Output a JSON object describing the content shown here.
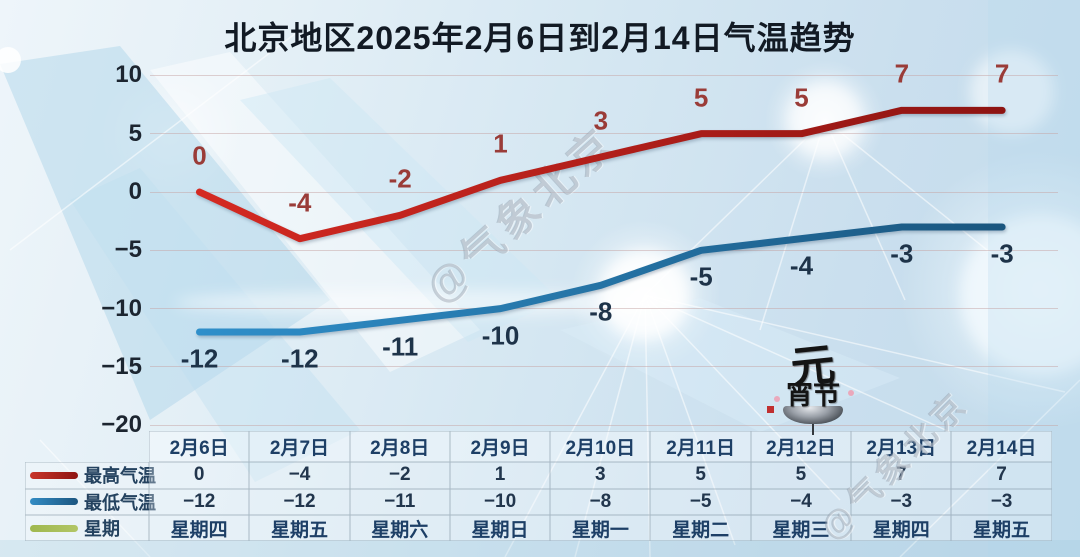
{
  "title": "北京地区2025年2月6日到2月14日气温趋势",
  "watermark": {
    "text": "@气象北京"
  },
  "festival_logo": {
    "top": "元",
    "bottom": "宵节"
  },
  "chart_data": {
    "type": "line",
    "title": "北京地区2025年2月6日到2月14日气温趋势",
    "categories": [
      "2月6日",
      "2月7日",
      "2月8日",
      "2月9日",
      "2月10日",
      "2月11日",
      "2月12日",
      "2月13日",
      "2月14日"
    ],
    "series": [
      {
        "name": "最高气温",
        "values": [
          0,
          -4,
          -2,
          1,
          3,
          5,
          5,
          7,
          7
        ],
        "color_start": "#d42a22",
        "color_end": "#8e1412",
        "label_color": "#9a3c38"
      },
      {
        "name": "最低气温",
        "values": [
          -12,
          -12,
          -11,
          -10,
          -8,
          -5,
          -4,
          -3,
          -3
        ],
        "color_start": "#2f8fca",
        "color_end": "#1a567f",
        "label_color": "#1e3349"
      },
      {
        "name": "星期",
        "values_text": [
          "星期四",
          "星期五",
          "星期六",
          "星期日",
          "星期一",
          "星期二",
          "星期三",
          "星期四",
          "星期五"
        ],
        "color_start": "#9fb84e",
        "color_end": "#b2c666"
      }
    ],
    "yticks": [
      10,
      5,
      0,
      -5,
      -10,
      -15,
      -20
    ],
    "ylim": [
      -20,
      10
    ],
    "grid": true,
    "legend_position": "table-left"
  },
  "table": {
    "columns": [
      "2月6日",
      "2月7日",
      "2月8日",
      "2月9日",
      "2月10日",
      "2月11日",
      "2月12日",
      "2月13日",
      "2月14日"
    ],
    "rows": [
      {
        "label": "最高气温",
        "kind": "val",
        "values": [
          "0",
          "−4",
          "−2",
          "1",
          "3",
          "5",
          "5",
          "7",
          "7"
        ],
        "swatch_start": "#c8352a",
        "swatch_end": "#8e1412"
      },
      {
        "label": "最低气温",
        "kind": "val",
        "values": [
          "−12",
          "−12",
          "−11",
          "−10",
          "−8",
          "−5",
          "−4",
          "−3",
          "−3"
        ],
        "swatch_start": "#338cc4",
        "swatch_end": "#1c5680"
      },
      {
        "label": "星期",
        "kind": "day",
        "values": [
          "星期四",
          "星期五",
          "星期六",
          "星期日",
          "星期一",
          "星期二",
          "星期三",
          "星期四",
          "星期五"
        ],
        "swatch_start": "#9fb84e",
        "swatch_end": "#b2c666"
      }
    ]
  }
}
